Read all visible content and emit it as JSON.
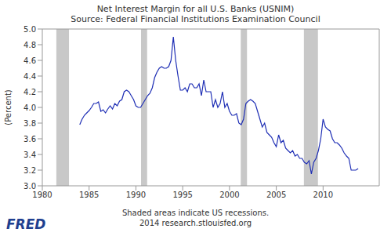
{
  "chart_data": {
    "type": "line",
    "title": "Net Interest Margin for all U.S. Banks (USNIM)",
    "subtitle": "Source: Federal Financial Institutions Examination Council",
    "y_label": "(Percent)",
    "footnote": "Shaded areas indicate US recessions.",
    "credit": "2014 research.stlouisfed.org",
    "logo": "FRED",
    "color": "#1f2fb5",
    "grid": false,
    "xlim": [
      1980,
      2016
    ],
    "xticks": [
      1980,
      1985,
      1990,
      1995,
      2000,
      2005,
      2010
    ],
    "ylim": [
      3.0,
      5.0
    ],
    "yticks": [
      {
        "value": 3.0,
        "label": "3.0"
      },
      3.2,
      3.4,
      3.6,
      3.8,
      {
        "value": 4.0,
        "label": "4.0"
      },
      4.2,
      4.4,
      4.6,
      4.8,
      {
        "value": 5.0,
        "label": "5.0"
      }
    ],
    "recessions": [
      [
        1981.5,
        1982.85
      ],
      [
        1990.55,
        1991.2
      ],
      [
        2001.2,
        2001.87
      ],
      [
        2007.95,
        2009.45
      ]
    ],
    "x": [
      1984,
      1984.25,
      1984.5,
      1984.75,
      1985,
      1985.25,
      1985.5,
      1985.75,
      1986,
      1986.25,
      1986.5,
      1986.75,
      1987,
      1987.25,
      1987.5,
      1987.75,
      1988,
      1988.25,
      1988.5,
      1988.75,
      1989,
      1989.25,
      1989.5,
      1989.75,
      1990,
      1990.25,
      1990.5,
      1990.75,
      1991,
      1991.25,
      1991.5,
      1991.75,
      1992,
      1992.25,
      1992.5,
      1992.75,
      1993,
      1993.25,
      1993.5,
      1993.75,
      1994,
      1994.25,
      1994.5,
      1994.75,
      1995,
      1995.25,
      1995.5,
      1995.75,
      1996,
      1996.25,
      1996.5,
      1996.75,
      1997,
      1997.25,
      1997.5,
      1997.75,
      1998,
      1998.25,
      1998.5,
      1998.75,
      1999,
      1999.25,
      1999.5,
      1999.75,
      2000,
      2000.25,
      2000.5,
      2000.75,
      2001,
      2001.25,
      2001.5,
      2001.75,
      2002,
      2002.25,
      2002.5,
      2002.75,
      2003,
      2003.25,
      2003.5,
      2003.75,
      2004,
      2004.25,
      2004.5,
      2004.75,
      2005,
      2005.25,
      2005.5,
      2005.75,
      2006,
      2006.25,
      2006.5,
      2006.75,
      2007,
      2007.25,
      2007.5,
      2007.75,
      2008,
      2008.25,
      2008.5,
      2008.75,
      2009,
      2009.25,
      2009.5,
      2009.75,
      2010,
      2010.25,
      2010.5,
      2010.75,
      2011,
      2011.25,
      2011.5,
      2011.75,
      2012,
      2012.25,
      2012.5,
      2012.75,
      2013,
      2013.25,
      2013.5,
      2013.75
    ],
    "values": [
      3.78,
      3.85,
      3.9,
      3.93,
      3.96,
      4.0,
      4.05,
      4.05,
      4.07,
      3.95,
      3.97,
      3.93,
      3.98,
      4.02,
      3.98,
      4.05,
      4.02,
      4.08,
      4.1,
      4.2,
      4.22,
      4.2,
      4.15,
      4.1,
      4.02,
      4.0,
      4.0,
      4.05,
      4.1,
      4.15,
      4.18,
      4.25,
      4.38,
      4.45,
      4.5,
      4.52,
      4.5,
      4.5,
      4.52,
      4.6,
      4.9,
      4.6,
      4.4,
      4.22,
      4.22,
      4.25,
      4.2,
      4.3,
      4.3,
      4.25,
      4.25,
      4.3,
      4.15,
      4.35,
      4.2,
      4.2,
      4.2,
      4.0,
      4.1,
      4.0,
      4.05,
      4.2,
      4.0,
      4.05,
      3.95,
      3.9,
      3.9,
      3.92,
      3.8,
      3.78,
      3.85,
      4.05,
      4.08,
      4.1,
      4.08,
      4.05,
      3.95,
      3.85,
      3.75,
      3.8,
      3.68,
      3.65,
      3.62,
      3.55,
      3.5,
      3.65,
      3.55,
      3.58,
      3.48,
      3.45,
      3.42,
      3.45,
      3.38,
      3.4,
      3.35,
      3.35,
      3.3,
      3.28,
      3.32,
      3.15,
      3.3,
      3.35,
      3.45,
      3.6,
      3.85,
      3.75,
      3.72,
      3.7,
      3.6,
      3.55,
      3.55,
      3.52,
      3.48,
      3.42,
      3.38,
      3.35,
      3.2,
      3.2,
      3.2,
      3.22
    ]
  }
}
